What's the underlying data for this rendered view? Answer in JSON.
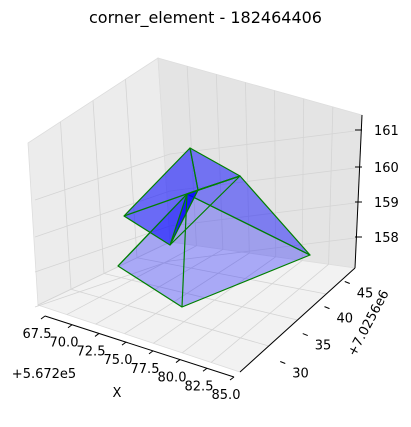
{
  "chart_data": {
    "type": "3d-surface",
    "title": "corner_element - 182464406",
    "xlabel": "X",
    "ylabel": "Y",
    "x_offset_label": "+5.672e5",
    "y_offset_label": "+7.0256e6",
    "x_ticks": [
      "67.5",
      "70.0",
      "72.5",
      "75.0",
      "77.5",
      "80.0",
      "82.5",
      "85.0"
    ],
    "y_ticks": [
      "30",
      "35",
      "40",
      "45"
    ],
    "z_ticks": [
      "158",
      "159",
      "160",
      "161"
    ],
    "grid": true,
    "edge_color": "#008000",
    "face_color": "#0000ff",
    "faces": [
      {
        "name": "front-face",
        "opacity": 0.3
      },
      {
        "name": "right-face",
        "opacity": 0.45
      },
      {
        "name": "left-fold-face",
        "opacity": 0.55
      },
      {
        "name": "back-face",
        "opacity": 0.5
      },
      {
        "name": "inner-fold-face",
        "opacity": 0.65
      }
    ]
  }
}
